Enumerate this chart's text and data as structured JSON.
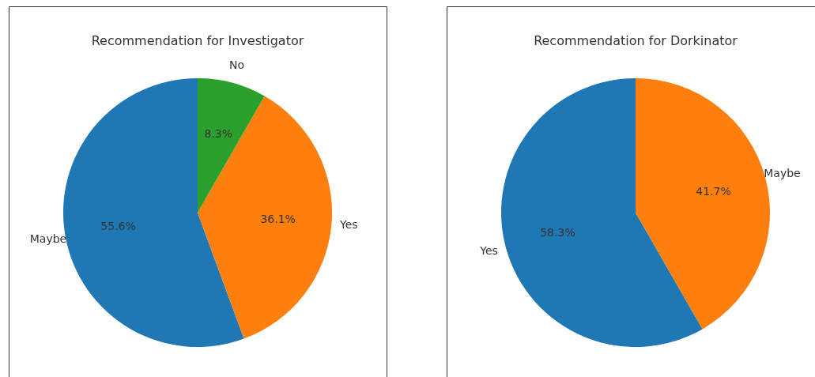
{
  "chart_data": [
    {
      "type": "pie",
      "title": "Recommendation for Investigator",
      "categories": [
        "Maybe",
        "Yes",
        "No"
      ],
      "values": [
        55.6,
        36.1,
        8.3
      ],
      "colors": [
        "#1f77b4",
        "#ff7f0e",
        "#2ca02c"
      ],
      "value_labels": [
        "55.6%",
        "36.1%",
        "8.3%"
      ]
    },
    {
      "type": "pie",
      "title": "Recommendation for Dorkinator",
      "categories": [
        "Yes",
        "Maybe"
      ],
      "values": [
        58.3,
        41.7
      ],
      "colors": [
        "#1f77b4",
        "#ff7f0e"
      ],
      "value_labels": [
        "58.3%",
        "41.7%"
      ]
    }
  ]
}
